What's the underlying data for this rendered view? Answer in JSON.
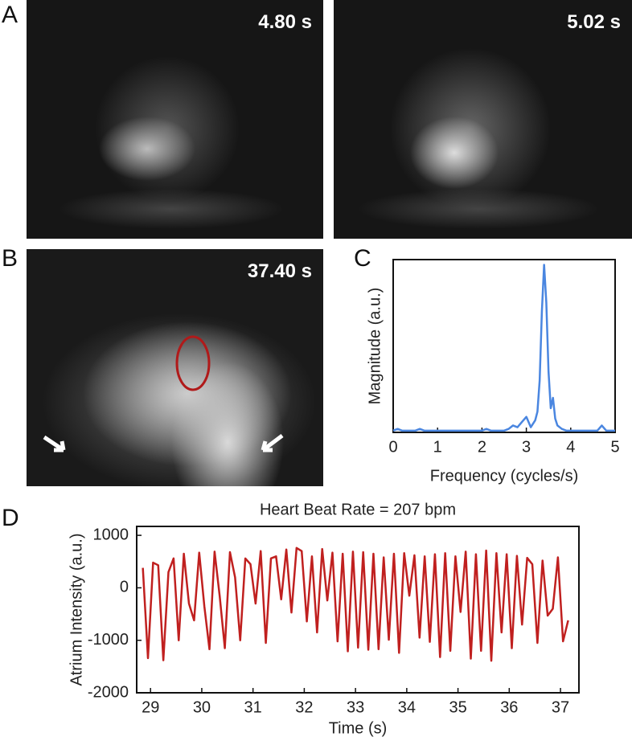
{
  "panels": {
    "A": {
      "label": "A",
      "times": [
        "4.80 s",
        "5.02 s"
      ]
    },
    "B": {
      "label": "B",
      "time": "37.40 s"
    },
    "C": {
      "label": "C"
    },
    "D": {
      "label": "D"
    }
  },
  "chart_data": [
    {
      "type": "line",
      "xlabel": "Frequency (cycles/s)",
      "ylabel": "Magnitude (a.u.)",
      "x": [
        0,
        0.1,
        0.2,
        0.3,
        0.4,
        0.5,
        0.6,
        0.7,
        0.8,
        0.9,
        1.0,
        1.1,
        1.2,
        1.3,
        1.4,
        1.5,
        1.6,
        1.7,
        1.8,
        1.9,
        2.0,
        2.1,
        2.2,
        2.3,
        2.4,
        2.5,
        2.6,
        2.7,
        2.8,
        2.9,
        3.0,
        3.1,
        3.2,
        3.25,
        3.3,
        3.35,
        3.4,
        3.45,
        3.5,
        3.55,
        3.6,
        3.65,
        3.7,
        3.8,
        3.9,
        4.0,
        4.1,
        4.2,
        4.3,
        4.4,
        4.5,
        4.6,
        4.7,
        4.8,
        4.9,
        5.0
      ],
      "series": [
        {
          "color": "#4a86e0",
          "values": [
            1,
            2,
            1,
            1,
            1,
            1,
            2,
            1,
            1,
            1,
            1,
            1,
            1,
            1,
            1,
            1,
            1,
            1,
            1,
            1,
            1,
            2,
            1,
            1,
            1,
            1,
            2,
            4,
            3,
            6,
            9,
            3,
            7,
            12,
            30,
            70,
            97,
            75,
            35,
            14,
            20,
            8,
            4,
            2,
            1,
            1,
            1,
            1,
            1,
            1,
            1,
            1,
            4,
            1,
            1,
            1
          ]
        }
      ],
      "xlim": [
        0,
        5
      ],
      "ylim": [
        0,
        100
      ],
      "xticks": [
        0,
        1,
        2,
        3,
        4,
        5
      ]
    },
    {
      "type": "line",
      "title": "Heart Beat Rate = 207 bpm",
      "xlabel": "Time (s)",
      "ylabel": "Atrium Intensity (a.u.)",
      "x": [
        28.85,
        28.95,
        29.05,
        29.15,
        29.25,
        29.35,
        29.45,
        29.55,
        29.65,
        29.75,
        29.85,
        29.95,
        30.05,
        30.15,
        30.25,
        30.35,
        30.45,
        30.55,
        30.65,
        30.75,
        30.85,
        30.95,
        31.05,
        31.15,
        31.25,
        31.35,
        31.45,
        31.55,
        31.65,
        31.75,
        31.85,
        31.95,
        32.05,
        32.15,
        32.25,
        32.35,
        32.45,
        32.55,
        32.65,
        32.75,
        32.85,
        32.95,
        33.05,
        33.15,
        33.25,
        33.35,
        33.45,
        33.55,
        33.65,
        33.75,
        33.85,
        33.95,
        34.05,
        34.15,
        34.25,
        34.35,
        34.45,
        34.55,
        34.65,
        34.75,
        34.85,
        34.95,
        35.05,
        35.15,
        35.25,
        35.35,
        35.45,
        35.55,
        35.65,
        35.75,
        35.85,
        35.95,
        36.05,
        36.15,
        36.25,
        36.35,
        36.45,
        36.55,
        36.65,
        36.75,
        36.85,
        36.95,
        37.05,
        37.15
      ],
      "series": [
        {
          "color": "#c0201f",
          "values": [
            380,
            -1340,
            480,
            430,
            -1380,
            300,
            560,
            -1000,
            650,
            -300,
            -620,
            670,
            -350,
            -1170,
            690,
            -160,
            -1150,
            680,
            200,
            -1000,
            560,
            450,
            -300,
            700,
            -1050,
            560,
            600,
            -220,
            730,
            -470,
            760,
            700,
            -640,
            600,
            -850,
            740,
            -240,
            670,
            -1020,
            650,
            -1210,
            690,
            -1140,
            680,
            -1180,
            650,
            -1170,
            580,
            -990,
            650,
            -1240,
            660,
            -150,
            620,
            -950,
            600,
            -1030,
            640,
            -1320,
            660,
            -1200,
            600,
            -460,
            690,
            -1350,
            640,
            -1200,
            710,
            -1390,
            660,
            -850,
            640,
            -1150,
            610,
            -700,
            570,
            450,
            -1050,
            520,
            -530,
            -400,
            580,
            -1020,
            -620
          ]
        }
      ],
      "xlim": [
        28.73,
        37.36
      ],
      "ylim": [
        -2000,
        1170
      ],
      "xticks": [
        29,
        30,
        31,
        32,
        33,
        34,
        35,
        36,
        37
      ],
      "yticks": [
        -2000,
        -1000,
        0,
        1000
      ]
    }
  ]
}
